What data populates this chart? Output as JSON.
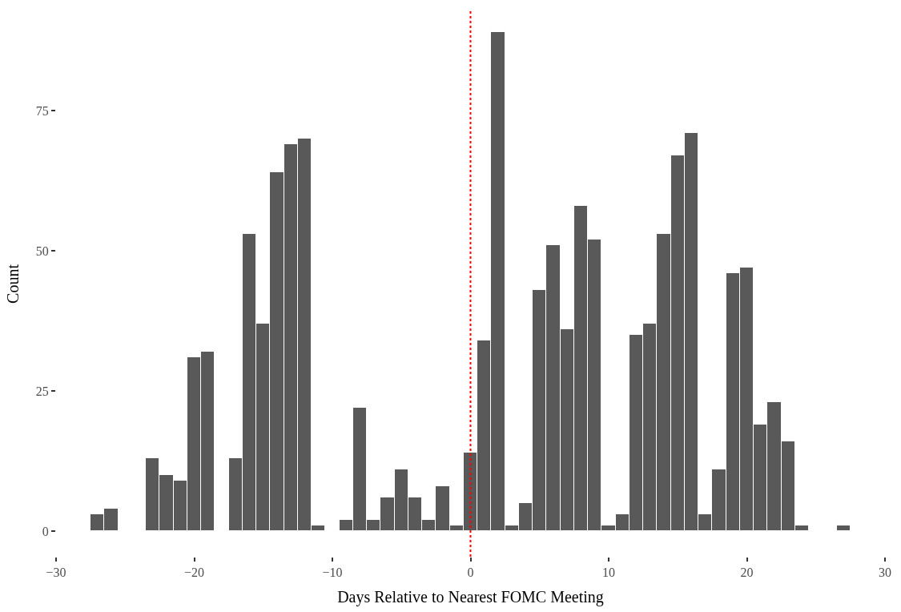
{
  "chart_data": {
    "type": "histogram",
    "xlabel": "Days Relative to Nearest FOMC Meeting",
    "ylabel": "Count",
    "bins": [
      -27.5,
      -26.5,
      -25.5,
      -24.5,
      -23.5,
      -22.5,
      -21.5,
      -20.5,
      -19.5,
      -18.5,
      -17.5,
      -16.5,
      -15.5,
      -14.5,
      -13.5,
      -12.5,
      -11.5,
      -10.5,
      -9.5,
      -8.5,
      -7.5,
      -6.5,
      -5.5,
      -4.5,
      -3.5,
      -2.5,
      -1.5,
      -0.5,
      0.5,
      1.5,
      2.5,
      3.5,
      4.5,
      5.5,
      6.5,
      7.5,
      8.5,
      9.5,
      10.5,
      11.5,
      12.5,
      13.5,
      14.5,
      15.5,
      16.5,
      17.5,
      18.5,
      19.5,
      20.5,
      21.5,
      22.5,
      23.5,
      24.5,
      25.5,
      26.5,
      27.5
    ],
    "values": [
      3,
      4,
      0,
      0,
      13,
      10,
      9,
      31,
      32,
      0,
      13,
      53,
      37,
      64,
      69,
      70,
      1,
      0,
      2,
      22,
      2,
      6,
      11,
      6,
      2,
      8,
      1,
      14,
      34,
      89,
      1,
      5,
      43,
      51,
      36,
      58,
      52,
      1,
      3,
      35,
      37,
      53,
      67,
      71,
      3,
      11,
      46,
      47,
      19,
      23,
      16,
      1,
      0,
      0,
      1
    ],
    "color": "#595959",
    "xlim": [
      -30,
      30
    ],
    "ylim": [
      -4.5,
      92.7
    ],
    "xticks": [
      {
        "value": -30,
        "label": "−30"
      },
      {
        "value": -20,
        "label": "−20"
      },
      {
        "value": -10,
        "label": "−10"
      },
      0,
      10,
      20,
      30
    ],
    "yticks": [
      0,
      25,
      50,
      75
    ],
    "ref_lines": [
      {
        "axis": "x",
        "value": 0,
        "color": "#ff0000",
        "line_style": "dotted"
      }
    ]
  }
}
